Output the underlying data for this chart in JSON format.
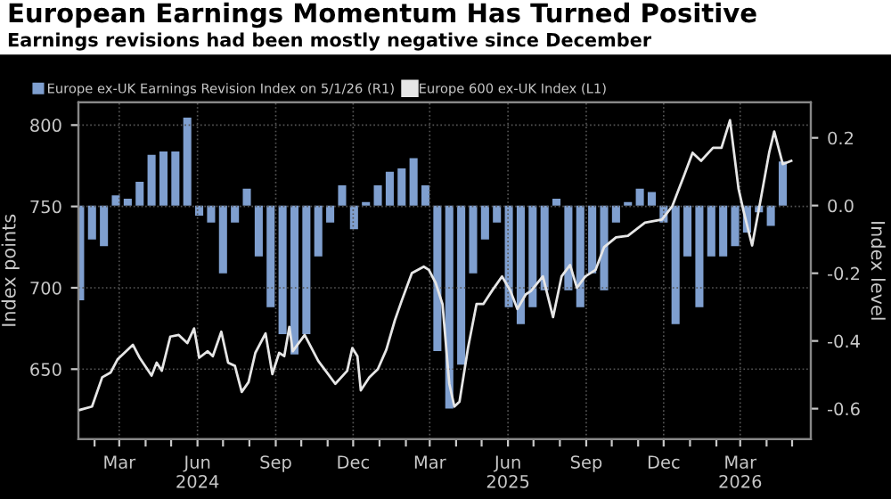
{
  "chart_data": {
    "type": "line",
    "title": "European Earnings Momentum Has Turned Positive",
    "subtitle": "Earnings revisions had been mostly negative since December",
    "ylabel": "Index points",
    "y2label": "Index level",
    "legend": "top left",
    "grid": true,
    "marker": "none",
    "line_style": "solid",
    "xlim": [
      "2024-01-13",
      "2026-05-23"
    ],
    "xticks": [
      {
        "value": "2024-02-01",
        "label": null
      },
      {
        "value": "2024-03-01",
        "label": "Mar"
      },
      {
        "value": "2024-04-01",
        "label": null
      },
      {
        "value": "2024-05-01",
        "label": null
      },
      {
        "value": "2024-06-01",
        "label": "Jun\n2024"
      },
      {
        "value": "2024-07-01",
        "label": null
      },
      {
        "value": "2024-08-01",
        "label": null
      },
      {
        "value": "2024-09-01",
        "label": "Sep"
      },
      {
        "value": "2024-10-01",
        "label": null
      },
      {
        "value": "2024-11-01",
        "label": null
      },
      {
        "value": "2024-12-01",
        "label": "Dec"
      },
      {
        "value": "2025-01-01",
        "label": null
      },
      {
        "value": "2025-02-01",
        "label": null
      },
      {
        "value": "2025-03-01",
        "label": "Mar"
      },
      {
        "value": "2025-04-01",
        "label": null
      },
      {
        "value": "2025-05-01",
        "label": null
      },
      {
        "value": "2025-06-01",
        "label": "Jun\n2025"
      },
      {
        "value": "2025-07-01",
        "label": null
      },
      {
        "value": "2025-08-01",
        "label": null
      },
      {
        "value": "2025-09-01",
        "label": "Sep"
      },
      {
        "value": "2025-10-01",
        "label": null
      },
      {
        "value": "2025-11-01",
        "label": null
      },
      {
        "value": "2025-12-01",
        "label": "Dec"
      },
      {
        "value": "2026-01-01",
        "label": null
      },
      {
        "value": "2026-02-01",
        "label": null
      },
      {
        "value": "2026-03-01",
        "label": "Mar\n2026"
      },
      {
        "value": "2026-04-01",
        "label": null
      },
      {
        "value": "2026-05-01",
        "label": null
      }
    ],
    "ylim": [
      607,
      814
    ],
    "yticks": [
      650,
      700,
      750,
      800
    ],
    "y2lim": [
      -0.69,
      0.305
    ],
    "y2ticks": [
      {
        "value": -0.6,
        "label": "-0.6"
      },
      {
        "value": -0.4,
        "label": "-0.4"
      },
      {
        "value": -0.2,
        "label": "-0.2"
      },
      {
        "value": 0,
        "label": "0.0"
      },
      {
        "value": 0.2,
        "label": "0.2"
      }
    ],
    "series": [
      {
        "name": "Europe ex-UK Earnings Revision Index on 5/1/26 (R1)",
        "type": "bar",
        "axis": "y2",
        "color": "#7f9fcf",
        "x": [
          "2024-01-15",
          "2024-01-29",
          "2024-02-12",
          "2024-02-26",
          "2024-03-11",
          "2024-03-25",
          "2024-04-08",
          "2024-04-22",
          "2024-05-06",
          "2024-05-20",
          "2024-06-03",
          "2024-06-17",
          "2024-07-01",
          "2024-07-15",
          "2024-07-29",
          "2024-08-12",
          "2024-08-26",
          "2024-09-09",
          "2024-09-23",
          "2024-10-07",
          "2024-10-21",
          "2024-11-04",
          "2024-11-18",
          "2024-12-02",
          "2024-12-16",
          "2024-12-30",
          "2025-01-13",
          "2025-01-27",
          "2025-02-10",
          "2025-02-24",
          "2025-03-10",
          "2025-03-24",
          "2025-04-07",
          "2025-04-21",
          "2025-05-05",
          "2025-05-19",
          "2025-06-02",
          "2025-06-16",
          "2025-06-30",
          "2025-07-14",
          "2025-07-28",
          "2025-08-11",
          "2025-08-25",
          "2025-09-08",
          "2025-09-22",
          "2025-10-06",
          "2025-10-20",
          "2025-11-03",
          "2025-11-17",
          "2025-12-01",
          "2025-12-15",
          "2025-12-29",
          "2026-01-12",
          "2026-01-26",
          "2026-02-09",
          "2026-02-23",
          "2026-03-09",
          "2026-03-23",
          "2026-04-06",
          "2026-04-20"
        ],
        "values": [
          -0.28,
          -0.1,
          -0.12,
          0.03,
          0.02,
          0.07,
          0.15,
          0.16,
          0.16,
          0.26,
          -0.03,
          -0.05,
          -0.2,
          -0.05,
          0.05,
          -0.15,
          -0.3,
          -0.38,
          -0.44,
          -0.38,
          -0.15,
          -0.05,
          0.06,
          -0.07,
          0.01,
          0.06,
          0.1,
          0.11,
          0.14,
          0.06,
          -0.43,
          -0.6,
          -0.47,
          -0.2,
          -0.1,
          -0.05,
          -0.3,
          -0.35,
          -0.3,
          -0.25,
          0.02,
          -0.25,
          -0.3,
          -0.2,
          -0.25,
          -0.05,
          0.01,
          0.05,
          0.04,
          -0.05,
          -0.35,
          -0.15,
          -0.3,
          -0.15,
          -0.15,
          -0.12,
          -0.08,
          -0.02,
          -0.06,
          0.13
        ]
      },
      {
        "name": "Europe 600 ex-UK Index (L1)",
        "color": "#e6e6e6",
        "x": [
          "2024-01-15",
          "2024-01-29",
          "2024-02-10",
          "2024-02-20",
          "2024-02-28",
          "2024-03-17",
          "2024-03-25",
          "2024-04-08",
          "2024-04-14",
          "2024-04-20",
          "2024-04-30",
          "2024-05-10",
          "2024-05-20",
          "2024-05-28",
          "2024-06-03",
          "2024-06-13",
          "2024-06-19",
          "2024-06-29",
          "2024-07-07",
          "2024-07-15",
          "2024-07-23",
          "2024-07-31",
          "2024-08-08",
          "2024-08-20",
          "2024-08-28",
          "2024-09-05",
          "2024-09-11",
          "2024-09-17",
          "2024-09-21",
          "2024-10-05",
          "2024-10-21",
          "2024-10-31",
          "2024-11-10",
          "2024-11-24",
          "2024-11-30",
          "2024-12-06",
          "2024-12-10",
          "2024-12-20",
          "2024-12-30",
          "2025-01-09",
          "2025-01-19",
          "2025-01-27",
          "2025-02-08",
          "2025-02-22",
          "2025-02-28",
          "2025-03-08",
          "2025-03-16",
          "2025-03-24",
          "2025-03-30",
          "2025-04-05",
          "2025-04-15",
          "2025-04-25",
          "2025-05-03",
          "2025-05-13",
          "2025-05-25",
          "2025-06-04",
          "2025-06-12",
          "2025-06-22",
          "2025-06-28",
          "2025-07-12",
          "2025-07-24",
          "2025-08-03",
          "2025-08-13",
          "2025-08-21",
          "2025-08-31",
          "2025-09-12",
          "2025-09-22",
          "2025-10-06",
          "2025-10-20",
          "2025-11-09",
          "2025-11-29",
          "2025-12-11",
          "2025-12-25",
          "2026-01-04",
          "2026-01-14",
          "2026-01-28",
          "2026-02-07",
          "2026-02-17",
          "2026-02-27",
          "2026-03-05",
          "2026-03-15",
          "2026-03-25",
          "2026-04-04",
          "2026-04-10",
          "2026-04-20",
          "2026-04-30"
        ],
        "values": [
          625,
          627,
          645,
          648,
          656,
          665,
          657,
          646,
          654,
          649,
          670,
          671,
          666,
          675,
          657,
          661,
          658,
          673,
          654,
          652,
          636,
          642,
          660,
          672,
          647,
          660,
          658,
          676,
          661,
          671,
          655,
          648,
          641,
          649,
          663,
          658,
          637,
          645,
          650,
          662,
          680,
          692,
          709,
          713,
          711,
          703,
          690,
          641,
          627,
          630,
          663,
          690,
          690,
          698,
          707,
          698,
          687,
          696,
          698,
          707,
          682,
          707,
          714,
          700,
          707,
          711,
          725,
          731,
          732,
          740,
          742,
          750,
          769,
          783,
          778,
          786,
          786,
          803,
          761,
          747,
          726,
          754,
          783,
          796,
          776,
          778
        ]
      }
    ]
  }
}
